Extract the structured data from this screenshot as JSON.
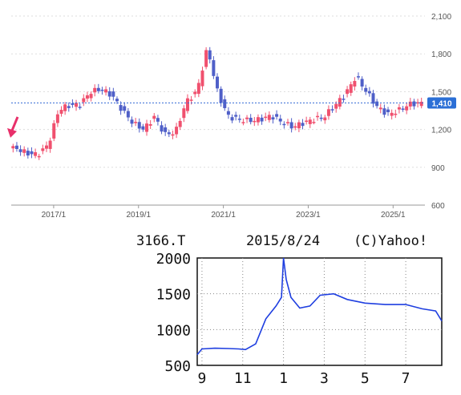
{
  "chart_data": [
    {
      "type": "candlestick",
      "title": "",
      "xlabel": "",
      "ylabel": "",
      "x_ticks": [
        "2017/1",
        "2019/1",
        "2021/1",
        "2023/1",
        "2025/1"
      ],
      "y_ticks": [
        600,
        900,
        1200,
        1500,
        1800,
        2100
      ],
      "y_tick_labels": [
        "600",
        "900",
        "1,200",
        "1,500",
        "1,800",
        "2,100"
      ],
      "ylim": [
        600,
        2100
      ],
      "grid": true,
      "current_price": 1410,
      "current_price_label": "1,410",
      "colors": {
        "up": "#f0506e",
        "down": "#4f5fc8",
        "price_line": "#3b6fd6",
        "price_badge": "#2b6fd6",
        "arrow": "#e8306a"
      },
      "series": [
        {
          "x": [
            "2016-03",
            "2016-06",
            "2016-09",
            "2016-12",
            "2017-03",
            "2017-06",
            "2017-09",
            "2017-12",
            "2018-03",
            "2018-06",
            "2018-09",
            "2018-12",
            "2019-03",
            "2019-06",
            "2019-09",
            "2019-12",
            "2020-03",
            "2020-06",
            "2020-09",
            "2020-12",
            "2021-03",
            "2021-06",
            "2021-09",
            "2021-12",
            "2022-03",
            "2022-06",
            "2022-09",
            "2022-12",
            "2023-03",
            "2023-06",
            "2023-09",
            "2023-12",
            "2024-03",
            "2024-06",
            "2024-09",
            "2024-12",
            "2025-03",
            "2025-06",
            "2025-09"
          ],
          "values": [
            1050,
            1010,
            1000,
            1080,
            1360,
            1390,
            1400,
            1500,
            1520,
            1470,
            1350,
            1250,
            1200,
            1300,
            1160,
            1180,
            1420,
            1500,
            1850,
            1480,
            1300,
            1280,
            1270,
            1280,
            1310,
            1260,
            1220,
            1250,
            1280,
            1300,
            1390,
            1480,
            1620,
            1500,
            1380,
            1320,
            1350,
            1400,
            1410
          ]
        }
      ]
    },
    {
      "type": "line",
      "title": "",
      "header": {
        "ticker": "3166.T",
        "date": "2015/8/24",
        "credit": "(C)Yahoo!"
      },
      "xlabel": "",
      "ylabel": "",
      "x_ticks": [
        "9",
        "11",
        "1",
        "3",
        "5",
        "7"
      ],
      "y_ticks": [
        500,
        1000,
        1500,
        2000
      ],
      "ylim": [
        500,
        2000
      ],
      "grid": true,
      "colors": {
        "line": "#1f3fe0"
      },
      "series": [
        {
          "x": [
            "2014-08-24",
            "2014-09-01",
            "2014-09-20",
            "2014-10-10",
            "2014-10-25",
            "2014-11-05",
            "2014-11-20",
            "2014-12-05",
            "2014-12-20",
            "2014-12-28",
            "2015-01-01",
            "2015-01-05",
            "2015-01-12",
            "2015-01-25",
            "2015-02-10",
            "2015-02-25",
            "2015-03-15",
            "2015-04-05",
            "2015-05-01",
            "2015-06-01",
            "2015-07-01",
            "2015-07-25",
            "2015-08-15",
            "2015-08-24"
          ],
          "values": [
            650,
            730,
            740,
            735,
            730,
            720,
            800,
            1150,
            1330,
            1450,
            2000,
            1700,
            1450,
            1300,
            1330,
            1480,
            1500,
            1420,
            1370,
            1350,
            1350,
            1290,
            1260,
            1120
          ]
        }
      ]
    }
  ]
}
